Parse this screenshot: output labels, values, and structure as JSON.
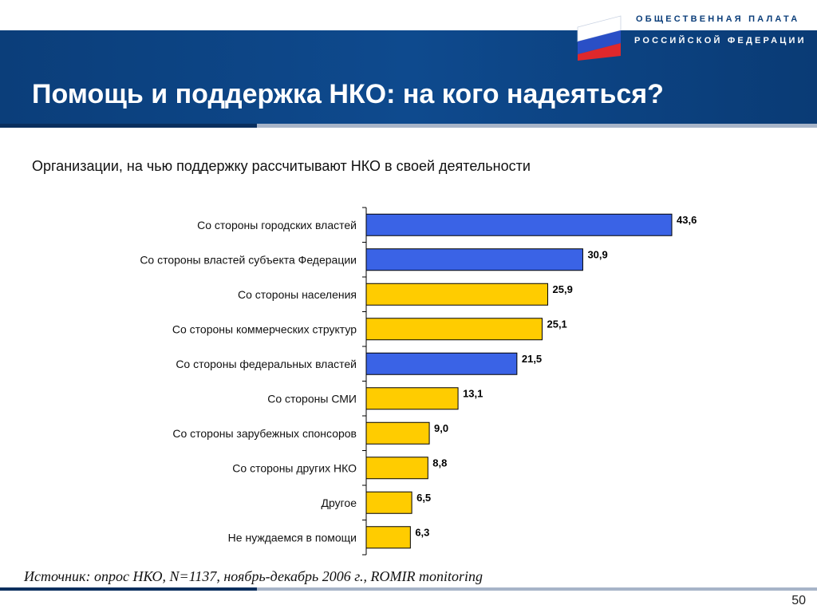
{
  "header": {
    "title": "Помощь и поддержка НКО: на кого надеяться?",
    "logo_line1": "ОБЩЕСТВЕННАЯ ПАЛАТА",
    "logo_line2": "РОССИЙСКОЙ ФЕДЕРАЦИИ",
    "logo_icon": "russian-flag-icon"
  },
  "colors": {
    "header_band": "#0e4a8e",
    "bar_government": "#3a63e6",
    "bar_other": "#ffcc00"
  },
  "chart_data": {
    "type": "bar",
    "orientation": "horizontal",
    "title": "Организации, на чью поддержку рассчитывают НКО в своей деятельности",
    "categories": [
      "Со стороны городских властей",
      "Со стороны властей субъекта Федерации",
      "Со стороны населения",
      "Со стороны коммерческих структур",
      "Со стороны федеральных властей",
      "Со стороны СМИ",
      "Со стороны зарубежных спонсоров",
      "Со стороны других НКО",
      "Другое",
      "Не нуждаемся в помощи"
    ],
    "values": [
      43.6,
      30.9,
      25.9,
      25.1,
      21.5,
      13.1,
      9.0,
      8.8,
      6.5,
      6.3
    ],
    "value_labels": [
      "43,6",
      "30,9",
      "25,9",
      "25,1",
      "21,5",
      "13,1",
      "9,0",
      "8,8",
      "6,5",
      "6,3"
    ],
    "bar_colors": [
      "#3a63e6",
      "#3a63e6",
      "#ffcc00",
      "#ffcc00",
      "#3a63e6",
      "#ffcc00",
      "#ffcc00",
      "#ffcc00",
      "#ffcc00",
      "#ffcc00"
    ],
    "xlim": [
      0,
      45
    ],
    "grid": false,
    "legend": "none"
  },
  "footer": {
    "source": "Источник: опрос НКО, N=1137, ноябрь-декабрь 2006 г., ROMIR monitoring",
    "page_number": "50"
  }
}
